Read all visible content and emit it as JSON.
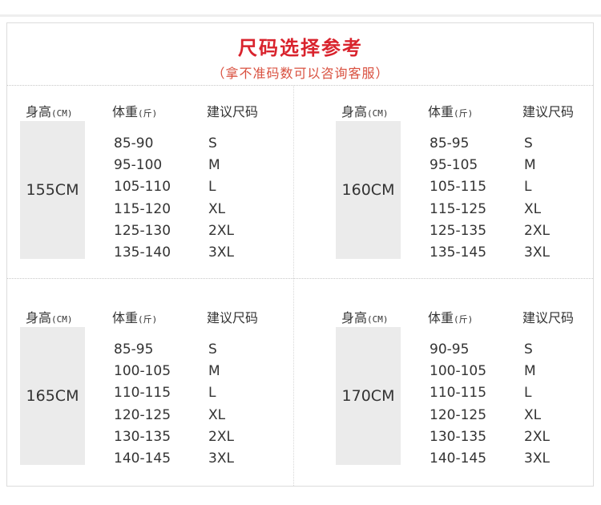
{
  "title": "尺码选择参考",
  "subtitle": "（拿不准码数可以咨询客服）",
  "headers": {
    "height": "身高",
    "height_unit": "(CM)",
    "weight": "体重",
    "weight_unit": "(斤)",
    "size": "建议尺码"
  },
  "colors": {
    "title": "#d9232d",
    "subtitle": "#d9503f",
    "height_box": "#ebebeb"
  },
  "tables": [
    {
      "height": "155CM",
      "rows": [
        [
          "85-90",
          "S"
        ],
        [
          "95-100",
          "M"
        ],
        [
          "105-110",
          "L"
        ],
        [
          "115-120",
          "XL"
        ],
        [
          "125-130",
          "2XL"
        ],
        [
          "135-140",
          "3XL"
        ]
      ]
    },
    {
      "height": "160CM",
      "rows": [
        [
          "85-95",
          "S"
        ],
        [
          "95-105",
          "M"
        ],
        [
          "105-115",
          "L"
        ],
        [
          "115-125",
          "XL"
        ],
        [
          "125-135",
          "2XL"
        ],
        [
          "135-145",
          "3XL"
        ]
      ]
    },
    {
      "height": "165CM",
      "rows": [
        [
          "85-95",
          "S"
        ],
        [
          "100-105",
          "M"
        ],
        [
          "110-115",
          "L"
        ],
        [
          "120-125",
          "XL"
        ],
        [
          "130-135",
          "2XL"
        ],
        [
          "140-145",
          "3XL"
        ]
      ]
    },
    {
      "height": "170CM",
      "rows": [
        [
          "90-95",
          "S"
        ],
        [
          "100-105",
          "M"
        ],
        [
          "110-115",
          "L"
        ],
        [
          "120-125",
          "XL"
        ],
        [
          "130-135",
          "2XL"
        ],
        [
          "140-145",
          "3XL"
        ]
      ]
    }
  ]
}
